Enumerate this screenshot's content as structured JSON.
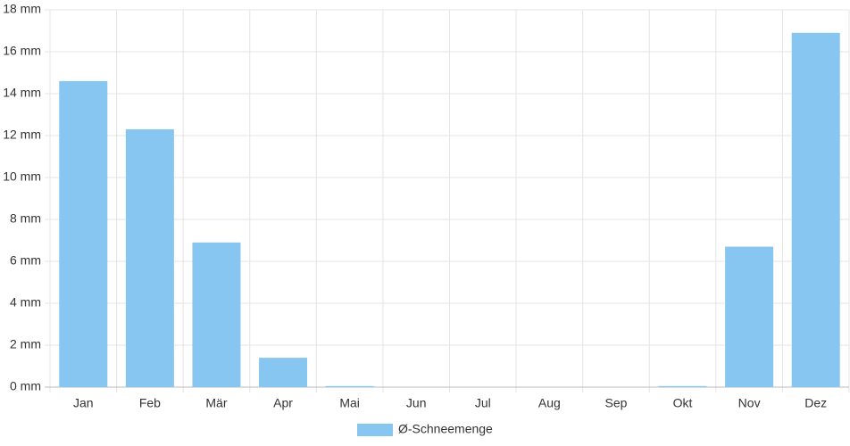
{
  "chart_data": {
    "type": "bar",
    "categories": [
      "Jan",
      "Feb",
      "Mär",
      "Apr",
      "Mai",
      "Jun",
      "Jul",
      "Aug",
      "Sep",
      "Okt",
      "Nov",
      "Dez"
    ],
    "series": [
      {
        "name": "Ø-Schneemenge",
        "color": "#88c6f2",
        "values": [
          14.6,
          12.3,
          6.9,
          1.4,
          0.05,
          0,
          0,
          0,
          0,
          0.05,
          6.7,
          16.9
        ]
      }
    ],
    "ylim": [
      0,
      18
    ],
    "yticks": [
      {
        "value": 0,
        "label": "0 mm"
      },
      {
        "value": 2,
        "label": "2 mm"
      },
      {
        "value": 4,
        "label": "4 mm"
      },
      {
        "value": 6,
        "label": "6 mm"
      },
      {
        "value": 8,
        "label": "8 mm"
      },
      {
        "value": 10,
        "label": "10 mm"
      },
      {
        "value": 12,
        "label": "12 mm"
      },
      {
        "value": 14,
        "label": "14 mm"
      },
      {
        "value": 16,
        "label": "16 mm"
      },
      {
        "value": 18,
        "label": "18 mm"
      }
    ],
    "grid": true,
    "legend": "bottom"
  }
}
